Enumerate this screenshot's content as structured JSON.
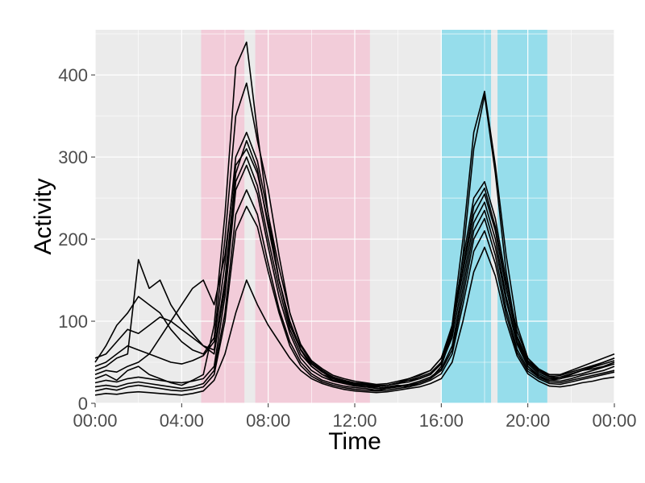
{
  "chart_data": {
    "type": "line",
    "title": "",
    "xlabel": "Time",
    "ylabel": "Activity",
    "x_unit": "hours",
    "xlim": [
      0,
      24
    ],
    "ylim": [
      0,
      455
    ],
    "x_ticks": [
      {
        "value": 0,
        "label": "00:00"
      },
      {
        "value": 4,
        "label": "04:00"
      },
      {
        "value": 8,
        "label": "08:00"
      },
      {
        "value": 12,
        "label": "12:00"
      },
      {
        "value": 16,
        "label": "16:00"
      },
      {
        "value": 20,
        "label": "20:00"
      },
      {
        "value": 24,
        "label": "00:00"
      }
    ],
    "y_ticks": [
      {
        "value": 0,
        "label": "0"
      },
      {
        "value": 100,
        "label": "100"
      },
      {
        "value": 200,
        "label": "200"
      },
      {
        "value": 300,
        "label": "300"
      },
      {
        "value": 400,
        "label": "400"
      }
    ],
    "grid": true,
    "legend": "none",
    "background_color": "#EBEBEB",
    "line_color": "#000000",
    "shaded_regions": [
      {
        "start": 4.9,
        "end": 6.9,
        "color": "#F2CCD9"
      },
      {
        "start": 7.4,
        "end": 12.7,
        "color": "#F2CCD9"
      },
      {
        "start": 16.0,
        "end": 18.3,
        "color": "#96DDEB"
      },
      {
        "start": 18.6,
        "end": 20.9,
        "color": "#96DDEB"
      }
    ],
    "x": [
      0,
      0.5,
      1,
      1.5,
      2,
      2.5,
      3,
      3.5,
      4,
      4.5,
      5,
      5.5,
      6,
      6.5,
      7,
      7.5,
      8,
      8.5,
      9,
      9.5,
      10,
      10.5,
      11,
      11.5,
      12,
      12.5,
      13,
      13.5,
      14,
      14.5,
      15,
      15.5,
      16,
      16.5,
      17,
      17.5,
      18,
      18.5,
      19,
      19.5,
      20,
      20.5,
      21,
      21.5,
      22,
      22.5,
      23,
      23.5,
      24
    ],
    "series": [
      {
        "values": [
          30,
          35,
          28,
          40,
          45,
          35,
          30,
          25,
          22,
          28,
          35,
          95,
          230,
          410,
          440,
          330,
          230,
          150,
          95,
          65,
          45,
          35,
          28,
          25,
          22,
          22,
          18,
          20,
          22,
          20,
          25,
          30,
          45,
          85,
          180,
          310,
          375,
          280,
          160,
          80,
          45,
          32,
          28,
          30,
          35,
          40,
          45,
          50,
          55
        ]
      },
      {
        "values": [
          50,
          70,
          95,
          110,
          130,
          120,
          110,
          90,
          75,
          65,
          60,
          80,
          200,
          350,
          390,
          320,
          260,
          180,
          110,
          70,
          50,
          40,
          32,
          28,
          25,
          24,
          22,
          22,
          25,
          28,
          30,
          35,
          50,
          95,
          200,
          330,
          380,
          290,
          180,
          95,
          55,
          40,
          35,
          35,
          40,
          45,
          50,
          55,
          60
        ]
      },
      {
        "values": [
          40,
          45,
          55,
          60,
          175,
          140,
          150,
          120,
          100,
          85,
          70,
          60,
          140,
          270,
          300,
          265,
          200,
          140,
          90,
          60,
          45,
          35,
          30,
          25,
          22,
          20,
          20,
          22,
          25,
          30,
          35,
          40,
          55,
          90,
          160,
          230,
          255,
          210,
          140,
          80,
          50,
          38,
          32,
          30,
          35,
          40,
          42,
          45,
          50
        ]
      },
      {
        "values": [
          35,
          40,
          38,
          45,
          50,
          60,
          80,
          100,
          120,
          140,
          150,
          120,
          180,
          290,
          310,
          280,
          220,
          150,
          100,
          65,
          48,
          38,
          30,
          26,
          23,
          22,
          20,
          22,
          24,
          26,
          30,
          35,
          48,
          80,
          150,
          220,
          245,
          200,
          130,
          75,
          48,
          36,
          30,
          30,
          33,
          36,
          40,
          44,
          48
        ]
      },
      {
        "values": [
          25,
          28,
          26,
          30,
          32,
          30,
          28,
          26,
          25,
          27,
          30,
          45,
          130,
          260,
          290,
          255,
          190,
          130,
          85,
          55,
          40,
          32,
          27,
          24,
          21,
          20,
          18,
          19,
          21,
          23,
          27,
          32,
          42,
          70,
          140,
          210,
          235,
          190,
          125,
          72,
          45,
          34,
          28,
          27,
          30,
          34,
          37,
          40,
          45
        ]
      },
      {
        "values": [
          20,
          22,
          20,
          24,
          26,
          24,
          22,
          20,
          18,
          20,
          24,
          40,
          110,
          230,
          260,
          230,
          170,
          115,
          75,
          50,
          36,
          28,
          24,
          21,
          19,
          18,
          16,
          18,
          20,
          22,
          25,
          30,
          40,
          65,
          130,
          200,
          225,
          180,
          115,
          66,
          42,
          32,
          26,
          25,
          28,
          31,
          34,
          37,
          40
        ]
      },
      {
        "values": [
          15,
          18,
          16,
          20,
          22,
          20,
          18,
          16,
          15,
          17,
          20,
          35,
          100,
          210,
          240,
          215,
          160,
          110,
          70,
          46,
          33,
          26,
          22,
          19,
          17,
          16,
          15,
          16,
          18,
          20,
          23,
          28,
          36,
          60,
          120,
          185,
          210,
          170,
          108,
          62,
          39,
          30,
          24,
          23,
          26,
          29,
          32,
          35,
          38
        ]
      },
      {
        "values": [
          10,
          12,
          11,
          13,
          14,
          13,
          12,
          11,
          10,
          12,
          15,
          28,
          60,
          110,
          150,
          120,
          95,
          75,
          55,
          40,
          30,
          24,
          20,
          17,
          15,
          14,
          13,
          14,
          16,
          18,
          20,
          24,
          30,
          50,
          100,
          160,
          190,
          155,
          100,
          58,
          36,
          27,
          21,
          20,
          22,
          25,
          27,
          30,
          32
        ]
      },
      {
        "values": [
          45,
          50,
          60,
          70,
          65,
          60,
          55,
          50,
          48,
          52,
          58,
          75,
          170,
          300,
          330,
          295,
          230,
          165,
          110,
          72,
          52,
          42,
          34,
          30,
          27,
          25,
          23,
          24,
          27,
          30,
          34,
          40,
          55,
          95,
          175,
          250,
          270,
          225,
          150,
          88,
          55,
          42,
          35,
          34,
          38,
          42,
          46,
          50,
          55
        ]
      },
      {
        "values": [
          55,
          60,
          75,
          90,
          85,
          95,
          105,
          100,
          90,
          80,
          70,
          65,
          150,
          280,
          320,
          285,
          215,
          150,
          100,
          66,
          48,
          38,
          31,
          27,
          24,
          23,
          21,
          22,
          25,
          28,
          32,
          37,
          50,
          88,
          165,
          240,
          262,
          215,
          142,
          82,
          52,
          40,
          33,
          32,
          36,
          40,
          44,
          48,
          52
        ]
      }
    ]
  }
}
